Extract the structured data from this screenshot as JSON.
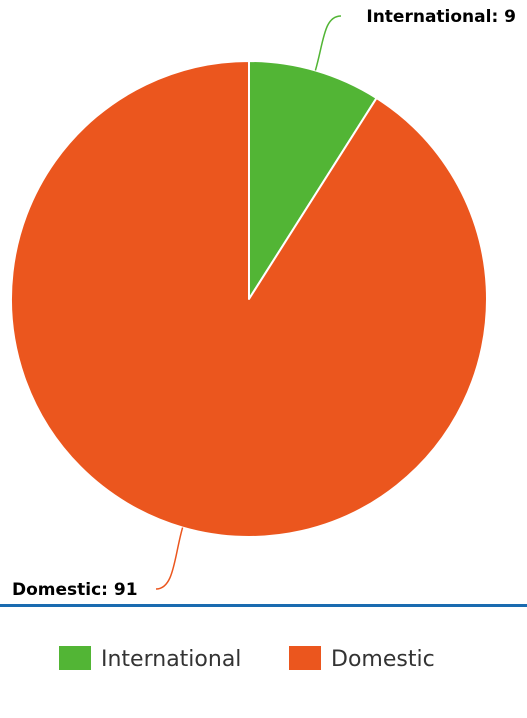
{
  "chart_data": {
    "type": "pie",
    "title": "",
    "series": [
      {
        "name": "",
        "slices": [
          {
            "label": "International",
            "value": 9,
            "color": "#52b535"
          },
          {
            "label": "Domestic",
            "value": 91,
            "color": "#eb561e"
          }
        ]
      }
    ],
    "data_labels": [
      "International: 9",
      "Domestic: 91"
    ],
    "legend": {
      "position": "bottom",
      "items": [
        "International",
        "Domestic"
      ]
    },
    "start_angle": "12 o'clock",
    "direction": "clockwise",
    "separator_color": "#1a6bb0"
  }
}
